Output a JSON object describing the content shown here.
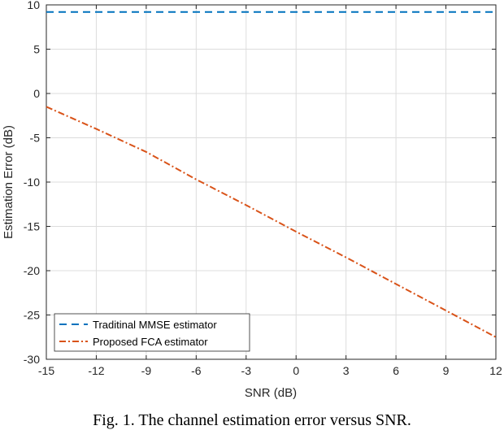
{
  "chart_data": {
    "type": "line",
    "title": "",
    "xlabel": "SNR (dB)",
    "ylabel": "Estimation Error (dB)",
    "xlim": [
      -15,
      12
    ],
    "ylim": [
      -30,
      10
    ],
    "xticks": [
      -15,
      -12,
      -9,
      -6,
      -3,
      0,
      3,
      6,
      9,
      12
    ],
    "yticks": [
      10,
      5,
      0,
      -5,
      -10,
      -15,
      -20,
      -25,
      -30
    ],
    "grid": true,
    "legend_position": "bottom-left",
    "x": [
      -15,
      -12,
      -9,
      -6,
      -3,
      0,
      3,
      6,
      9,
      12
    ],
    "series": [
      {
        "name": "Traditinal MMSE estimator",
        "color": "#0072BD",
        "style": "dashed",
        "values": [
          9.2,
          9.2,
          9.2,
          9.2,
          9.2,
          9.2,
          9.2,
          9.2,
          9.2,
          9.2
        ]
      },
      {
        "name": "Proposed FCA estimator",
        "color": "#D95319",
        "style": "dash-dot",
        "values": [
          -1.5,
          -4.0,
          -6.6,
          -9.7,
          -12.6,
          -15.6,
          -18.5,
          -21.5,
          -24.5,
          -27.5
        ]
      }
    ]
  },
  "caption": "Fig. 1. The channel estimation error versus SNR."
}
